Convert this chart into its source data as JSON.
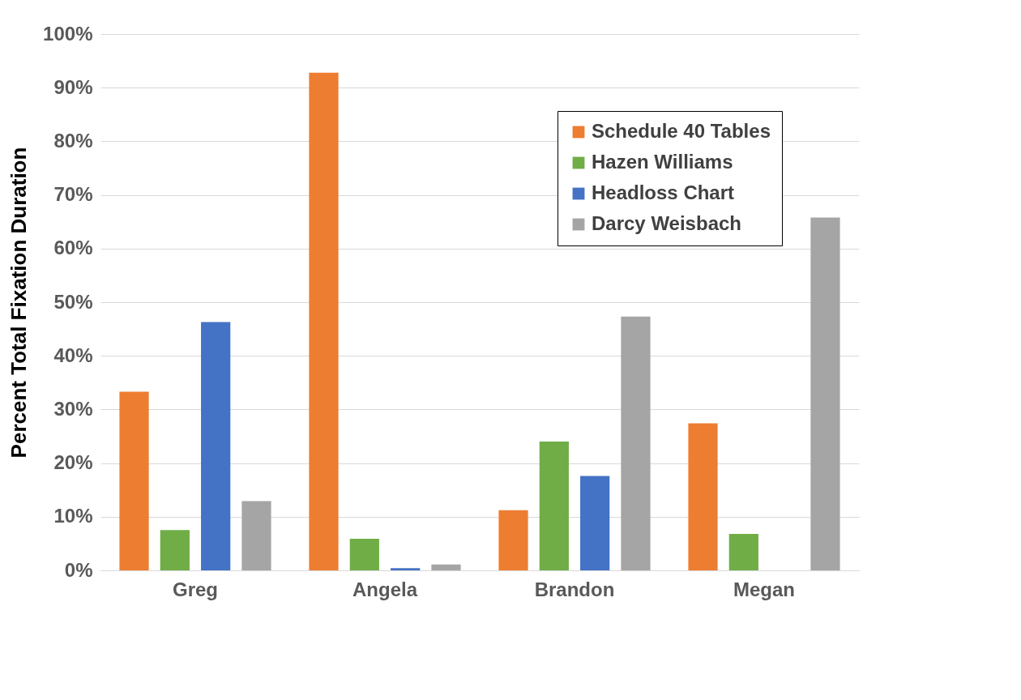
{
  "chart_data": {
    "type": "bar",
    "ylabel": "Percent Total Fixation Duration",
    "categories": [
      "Greg",
      "Angela",
      "Brandon",
      "Megan"
    ],
    "series": [
      {
        "name": "Schedule 40 Tables",
        "color": "#ed7d31",
        "values": [
          33.3,
          92.8,
          11.2,
          27.4
        ]
      },
      {
        "name": "Hazen Williams",
        "color": "#70ad47",
        "values": [
          7.5,
          5.9,
          24.0,
          6.8
        ]
      },
      {
        "name": "Headloss Chart",
        "color": "#4472c4",
        "values": [
          46.3,
          0.4,
          17.6,
          0
        ]
      },
      {
        "name": "Darcy Weisbach",
        "color": "#a5a5a5",
        "values": [
          12.9,
          1.1,
          47.3,
          65.8
        ]
      }
    ],
    "ylim": [
      0,
      100
    ],
    "yticks": [
      {
        "value": 0,
        "label": "0%"
      },
      {
        "value": 10,
        "label": "10%"
      },
      {
        "value": 20,
        "label": "20%"
      },
      {
        "value": 30,
        "label": "30%"
      },
      {
        "value": 40,
        "label": "40%"
      },
      {
        "value": 50,
        "label": "50%"
      },
      {
        "value": 60,
        "label": "60%"
      },
      {
        "value": 70,
        "label": "70%"
      },
      {
        "value": 80,
        "label": "80%"
      },
      {
        "value": 90,
        "label": "90%"
      },
      {
        "value": 100,
        "label": "100%"
      }
    ],
    "grid": "y",
    "legend": "top right"
  }
}
